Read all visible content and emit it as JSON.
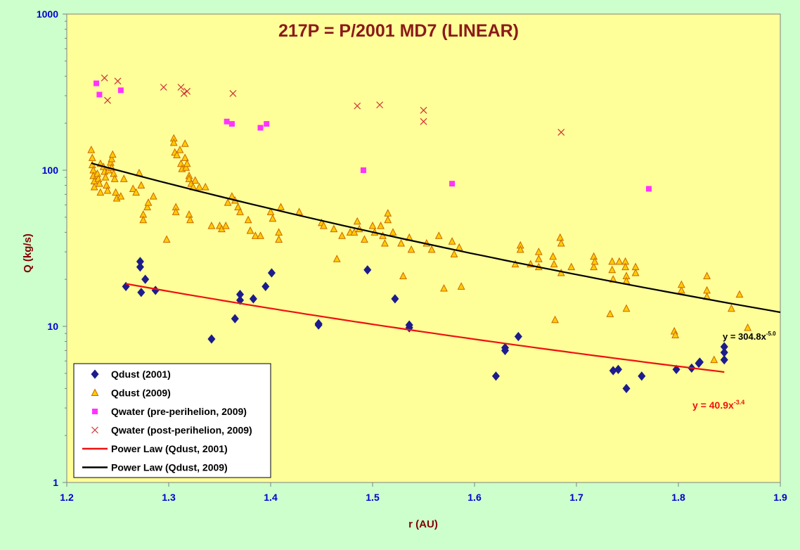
{
  "chart_data": {
    "type": "scatter",
    "title": "217P = P/2001 MD7 (LINEAR)",
    "xlabel": "r (AU)",
    "ylabel": "Q (kg/s)",
    "xlim": [
      1.2,
      1.9
    ],
    "ylim": [
      1,
      1000
    ],
    "yscale": "log",
    "grid": false,
    "legend_position": "bottom-left",
    "x_ticks": [
      "1.2",
      "1.3",
      "1.4",
      "1.5",
      "1.6",
      "1.7",
      "1.8",
      "1.9"
    ],
    "y_ticks": [
      "1",
      "10",
      "100",
      "1000"
    ],
    "colors": {
      "plot_bg": "#ffff99",
      "outer_bg": "#ccffcc",
      "title": "#8b1a1a",
      "axis_label": "#800000",
      "tick_label": "#0000cc",
      "dust2001": "#1c1c8c",
      "dust2009_fill": "#ffcc00",
      "dust2009_stroke": "#cc6600",
      "water_pre": "#ff33ff",
      "water_post": "#cc3333",
      "fit2001": "#ee1111",
      "fit2009": "#000000"
    },
    "series": [
      {
        "name": "Qdust (2001)",
        "marker": "diamond",
        "points": [
          [
            1.258,
            18
          ],
          [
            1.272,
            26
          ],
          [
            1.272,
            24
          ],
          [
            1.273,
            16.5
          ],
          [
            1.277,
            20
          ],
          [
            1.287,
            17
          ],
          [
            1.342,
            8.3
          ],
          [
            1.365,
            11.2
          ],
          [
            1.37,
            16
          ],
          [
            1.37,
            14.7
          ],
          [
            1.383,
            15
          ],
          [
            1.395,
            18
          ],
          [
            1.401,
            22
          ],
          [
            1.447,
            10.2
          ],
          [
            1.447,
            10.4
          ],
          [
            1.495,
            23
          ],
          [
            1.522,
            15
          ],
          [
            1.536,
            10.2
          ],
          [
            1.536,
            9.8
          ],
          [
            1.621,
            4.8
          ],
          [
            1.63,
            7
          ],
          [
            1.63,
            7.3
          ],
          [
            1.643,
            8.6
          ],
          [
            1.736,
            5.2
          ],
          [
            1.741,
            5.3
          ],
          [
            1.749,
            4
          ],
          [
            1.764,
            4.8
          ],
          [
            1.798,
            5.3
          ],
          [
            1.813,
            5.4
          ],
          [
            1.82,
            5.8
          ],
          [
            1.821,
            5.9
          ],
          [
            1.845,
            7.4
          ],
          [
            1.845,
            6.8
          ],
          [
            1.845,
            6.1
          ]
        ]
      },
      {
        "name": "Qdust (2009)",
        "marker": "triangle",
        "points": [
          [
            1.224,
            135
          ],
          [
            1.225,
            120
          ],
          [
            1.225,
            108
          ],
          [
            1.226,
            100
          ],
          [
            1.226,
            92
          ],
          [
            1.227,
            85
          ],
          [
            1.227,
            78
          ],
          [
            1.23,
            95
          ],
          [
            1.231,
            88
          ],
          [
            1.232,
            82
          ],
          [
            1.233,
            110
          ],
          [
            1.233,
            72
          ],
          [
            1.236,
            105
          ],
          [
            1.237,
            98
          ],
          [
            1.238,
            90
          ],
          [
            1.239,
            80
          ],
          [
            1.24,
            74
          ],
          [
            1.241,
            100
          ],
          [
            1.243,
            112
          ],
          [
            1.244,
            118
          ],
          [
            1.244,
            104
          ],
          [
            1.245,
            126
          ],
          [
            1.246,
            95
          ],
          [
            1.247,
            88
          ],
          [
            1.248,
            72
          ],
          [
            1.249,
            66
          ],
          [
            1.253,
            68
          ],
          [
            1.256,
            88
          ],
          [
            1.265,
            76
          ],
          [
            1.268,
            72
          ],
          [
            1.271,
            96
          ],
          [
            1.273,
            80
          ],
          [
            1.275,
            52
          ],
          [
            1.275,
            48
          ],
          [
            1.279,
            58
          ],
          [
            1.28,
            62
          ],
          [
            1.285,
            68
          ],
          [
            1.298,
            36
          ],
          [
            1.305,
            160
          ],
          [
            1.305,
            150
          ],
          [
            1.306,
            130
          ],
          [
            1.307,
            58
          ],
          [
            1.307,
            54
          ],
          [
            1.308,
            125
          ],
          [
            1.311,
            135
          ],
          [
            1.312,
            110
          ],
          [
            1.313,
            102
          ],
          [
            1.316,
            148
          ],
          [
            1.316,
            120
          ],
          [
            1.317,
            104
          ],
          [
            1.318,
            110
          ],
          [
            1.32,
            92
          ],
          [
            1.32,
            88
          ],
          [
            1.32,
            52
          ],
          [
            1.321,
            48
          ],
          [
            1.322,
            82
          ],
          [
            1.324,
            78
          ],
          [
            1.326,
            86
          ],
          [
            1.33,
            78
          ],
          [
            1.336,
            78
          ],
          [
            1.342,
            44
          ],
          [
            1.35,
            44
          ],
          [
            1.352,
            42
          ],
          [
            1.356,
            44
          ],
          [
            1.358,
            62
          ],
          [
            1.362,
            68
          ],
          [
            1.365,
            64
          ],
          [
            1.368,
            58
          ],
          [
            1.37,
            54
          ],
          [
            1.378,
            48
          ],
          [
            1.38,
            41
          ],
          [
            1.385,
            38
          ],
          [
            1.39,
            38
          ],
          [
            1.4,
            54
          ],
          [
            1.402,
            49
          ],
          [
            1.408,
            40
          ],
          [
            1.408,
            36
          ],
          [
            1.41,
            58
          ],
          [
            1.428,
            54
          ],
          [
            1.45,
            46
          ],
          [
            1.452,
            44
          ],
          [
            1.462,
            42
          ],
          [
            1.465,
            27
          ],
          [
            1.47,
            38
          ],
          [
            1.478,
            40
          ],
          [
            1.482,
            40
          ],
          [
            1.485,
            47
          ],
          [
            1.487,
            42
          ],
          [
            1.492,
            36
          ],
          [
            1.5,
            44
          ],
          [
            1.502,
            40
          ],
          [
            1.508,
            44
          ],
          [
            1.51,
            38
          ],
          [
            1.512,
            34
          ],
          [
            1.515,
            53
          ],
          [
            1.515,
            48
          ],
          [
            1.52,
            40
          ],
          [
            1.528,
            34
          ],
          [
            1.53,
            21
          ],
          [
            1.536,
            37
          ],
          [
            1.538,
            31
          ],
          [
            1.553,
            34
          ],
          [
            1.558,
            31
          ],
          [
            1.565,
            38
          ],
          [
            1.57,
            17.5
          ],
          [
            1.578,
            35
          ],
          [
            1.58,
            29
          ],
          [
            1.585,
            32
          ],
          [
            1.587,
            18
          ],
          [
            1.64,
            25
          ],
          [
            1.645,
            33
          ],
          [
            1.645,
            31
          ],
          [
            1.655,
            25
          ],
          [
            1.663,
            30
          ],
          [
            1.663,
            27
          ],
          [
            1.663,
            24
          ],
          [
            1.677,
            28
          ],
          [
            1.678,
            25
          ],
          [
            1.679,
            11
          ],
          [
            1.684,
            37
          ],
          [
            1.685,
            34
          ],
          [
            1.685,
            22
          ],
          [
            1.695,
            24
          ],
          [
            1.717,
            28
          ],
          [
            1.717,
            24
          ],
          [
            1.718,
            26
          ],
          [
            1.733,
            12
          ],
          [
            1.735,
            26
          ],
          [
            1.735,
            23
          ],
          [
            1.736,
            20
          ],
          [
            1.742,
            26
          ],
          [
            1.748,
            26
          ],
          [
            1.748,
            24
          ],
          [
            1.749,
            21
          ],
          [
            1.749,
            19.5
          ],
          [
            1.749,
            13
          ],
          [
            1.758,
            24
          ],
          [
            1.758,
            22
          ],
          [
            1.796,
            9.3
          ],
          [
            1.797,
            8.8
          ],
          [
            1.803,
            17
          ],
          [
            1.803,
            18.5
          ],
          [
            1.828,
            21
          ],
          [
            1.828,
            17
          ],
          [
            1.828,
            15.5
          ],
          [
            1.835,
            6.1
          ],
          [
            1.852,
            13
          ],
          [
            1.86,
            16
          ],
          [
            1.868,
            9.8
          ]
        ]
      },
      {
        "name": "Qwater (pre-perihelion, 2009)",
        "marker": "square",
        "points": [
          [
            1.229,
            360
          ],
          [
            1.232,
            305
          ],
          [
            1.253,
            325
          ],
          [
            1.357,
            205
          ],
          [
            1.362,
            198
          ],
          [
            1.39,
            187
          ],
          [
            1.396,
            198
          ],
          [
            1.491,
            100
          ],
          [
            1.578,
            82
          ],
          [
            1.771,
            76
          ]
        ]
      },
      {
        "name": "Qwater (post-perihelion, 2009)",
        "marker": "x",
        "points": [
          [
            1.237,
            390
          ],
          [
            1.24,
            280
          ],
          [
            1.25,
            372
          ],
          [
            1.295,
            340
          ],
          [
            1.312,
            340
          ],
          [
            1.315,
            310
          ],
          [
            1.318,
            320
          ],
          [
            1.363,
            310
          ],
          [
            1.485,
            258
          ],
          [
            1.507,
            262
          ],
          [
            1.55,
            242
          ],
          [
            1.55,
            205
          ],
          [
            1.685,
            175
          ]
        ]
      }
    ],
    "fits": [
      {
        "name": "Power Law (Qdust, 2001)",
        "a": 40.9,
        "b": -3.4,
        "xrange": [
          1.258,
          1.845
        ],
        "label_base": "y = 40.9x",
        "label_exp": "-3.4"
      },
      {
        "name": "Power Law (Qdust, 2009)",
        "a": 304.8,
        "b": -5.0,
        "xrange": [
          1.224,
          1.9
        ],
        "label_base": "y = 304.8x",
        "label_exp": "-5.0"
      }
    ]
  }
}
